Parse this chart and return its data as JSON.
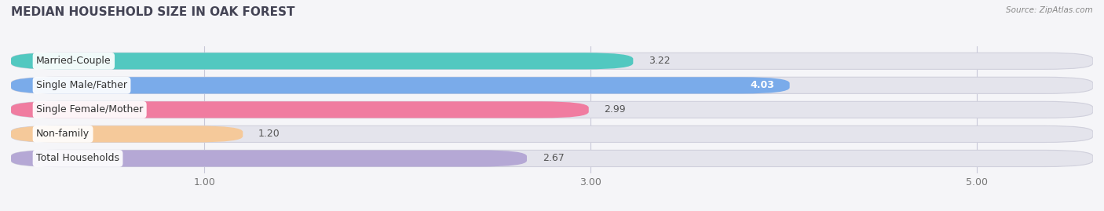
{
  "title": "MEDIAN HOUSEHOLD SIZE IN OAK FOREST",
  "source": "Source: ZipAtlas.com",
  "categories": [
    "Married-Couple",
    "Single Male/Father",
    "Single Female/Mother",
    "Non-family",
    "Total Households"
  ],
  "values": [
    3.22,
    4.03,
    2.99,
    1.2,
    2.67
  ],
  "bar_colors": [
    "#52c8c0",
    "#7aabea",
    "#f07ca0",
    "#f5c99a",
    "#b5a8d5"
  ],
  "xlim_min": 0.0,
  "xlim_max": 5.6,
  "xticks": [
    1.0,
    3.0,
    5.0
  ],
  "xticklabels": [
    "1.00",
    "3.00",
    "5.00"
  ],
  "title_fontsize": 11,
  "label_fontsize": 9,
  "value_fontsize": 9,
  "bg_color": "#f5f5f8",
  "bar_bg_color": "#e4e4ec",
  "bar_bg_edge": "#d0d0dc"
}
